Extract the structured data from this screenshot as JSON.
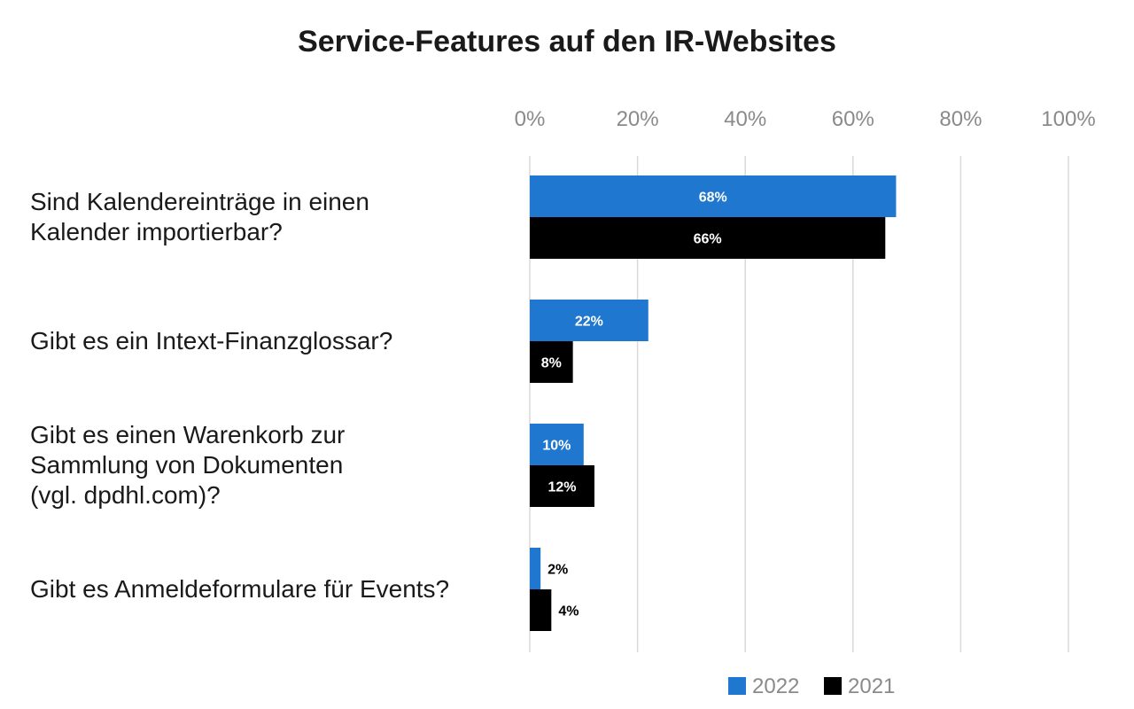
{
  "chart_data": {
    "type": "bar",
    "orientation": "horizontal",
    "title": "Service-Features auf den IR-Websites",
    "categories": [
      [
        "Sind Kalendereinträge in einen",
        "Kalender importierbar?"
      ],
      [
        "Gibt es ein Intext-Finanzglossar?"
      ],
      [
        "Gibt es einen Warenkorb zur",
        "Sammlung von Dokumenten",
        "(vgl. dpdhl.com)?"
      ],
      [
        "Gibt es Anmeldeformulare für Events?"
      ]
    ],
    "series": [
      {
        "name": "2022",
        "color": "#1f77d0",
        "values": [
          68,
          22,
          10,
          2
        ],
        "labels": [
          "68%",
          "22%",
          "10%",
          "2%"
        ]
      },
      {
        "name": "2021",
        "color": "#000000",
        "values": [
          66,
          8,
          12,
          4
        ],
        "labels": [
          "66%",
          "8%",
          "12%",
          "4%"
        ]
      }
    ],
    "xlim": [
      0,
      100
    ],
    "x_ticks": [
      0,
      20,
      40,
      60,
      80,
      100
    ],
    "x_tick_labels": [
      "0%",
      "20%",
      "40%",
      "60%",
      "80%",
      "100%"
    ],
    "x_axis_position": "top",
    "grid": true,
    "legend_placement": "bottom-right"
  }
}
